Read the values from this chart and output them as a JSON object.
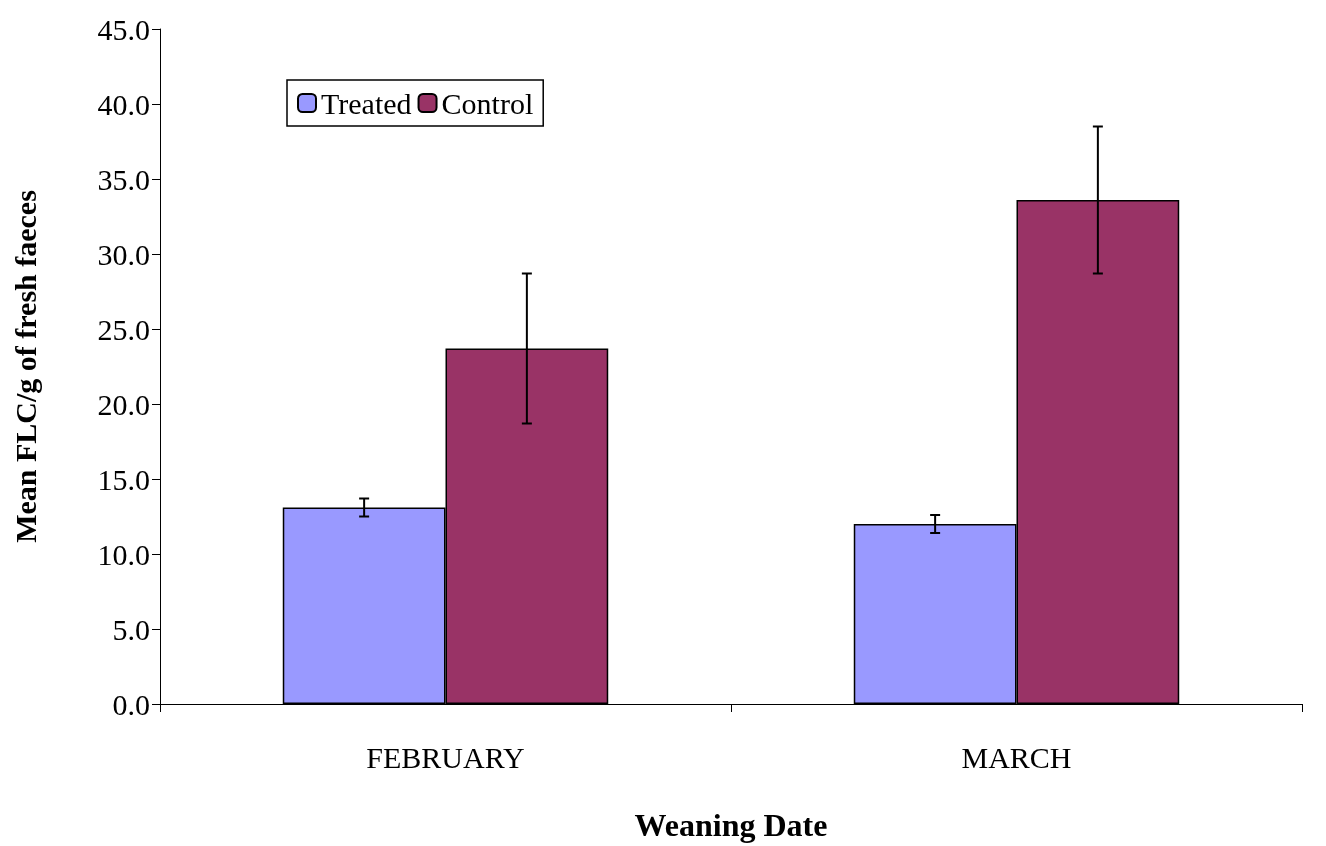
{
  "chart_data": {
    "type": "bar",
    "xlabel": "Weaning Date",
    "ylabel": "Mean FLC/g of fresh faeces",
    "categories": [
      "FEBRUARY",
      "MARCH"
    ],
    "series": [
      {
        "name": "Treated",
        "color": "#9999ff",
        "values": [
          13.1,
          12.0
        ],
        "errors": [
          0.6,
          0.6
        ]
      },
      {
        "name": "Control",
        "color": "#993366",
        "values": [
          23.7,
          33.6
        ],
        "errors": [
          5.0,
          4.9
        ]
      }
    ],
    "ylim": [
      0,
      45
    ],
    "yticks": [
      {
        "value": 0,
        "label": "0.0"
      },
      {
        "value": 5,
        "label": "5.0"
      },
      {
        "value": 10,
        "label": "10.0"
      },
      {
        "value": 15,
        "label": "15.0"
      },
      {
        "value": 20,
        "label": "20.0"
      },
      {
        "value": 25,
        "label": "25.0"
      },
      {
        "value": 30,
        "label": "30.0"
      },
      {
        "value": 35,
        "label": "35.0"
      },
      {
        "value": 40,
        "label": "40.0"
      },
      {
        "value": 45,
        "label": "45.0"
      }
    ],
    "grid": false,
    "legend": "top left"
  }
}
